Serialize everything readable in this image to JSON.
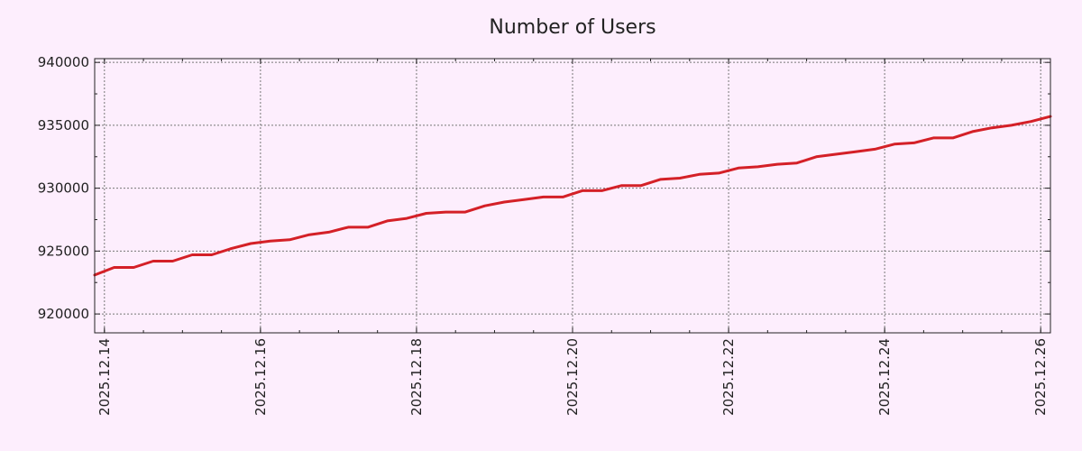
{
  "chart_data": {
    "type": "line",
    "title": "Number of Users",
    "xlabel": "",
    "ylabel": "",
    "x_ticks": [
      "2025.12.14",
      "2025.12.16",
      "2025.12.18",
      "2025.12.20",
      "2025.12.22",
      "2025.12.24",
      "2025.12.26"
    ],
    "y_ticks": [
      "920000",
      "925000",
      "930000",
      "935000",
      "940000"
    ],
    "xlim": [
      "2025-12-13T21:00",
      "2025-12-26T03:00"
    ],
    "ylim": [
      918500,
      940300
    ],
    "grid": true,
    "legend": "none",
    "series": [
      {
        "color": "#d42027",
        "x": [
          "2025-12-13T21:00",
          "2025-12-14T03:00",
          "2025-12-14T09:00",
          "2025-12-14T15:00",
          "2025-12-14T21:00",
          "2025-12-15T03:00",
          "2025-12-15T09:00",
          "2025-12-15T15:00",
          "2025-12-15T21:00",
          "2025-12-16T03:00",
          "2025-12-16T09:00",
          "2025-12-16T15:00",
          "2025-12-16T21:00",
          "2025-12-17T03:00",
          "2025-12-17T09:00",
          "2025-12-17T15:00",
          "2025-12-17T21:00",
          "2025-12-18T03:00",
          "2025-12-18T09:00",
          "2025-12-18T15:00",
          "2025-12-18T21:00",
          "2025-12-19T03:00",
          "2025-12-19T09:00",
          "2025-12-19T15:00",
          "2025-12-19T21:00",
          "2025-12-20T03:00",
          "2025-12-20T09:00",
          "2025-12-20T15:00",
          "2025-12-20T21:00",
          "2025-12-21T03:00",
          "2025-12-21T09:00",
          "2025-12-21T15:00",
          "2025-12-21T21:00",
          "2025-12-22T03:00",
          "2025-12-22T09:00",
          "2025-12-22T15:00",
          "2025-12-22T21:00",
          "2025-12-23T03:00",
          "2025-12-23T09:00",
          "2025-12-23T15:00",
          "2025-12-23T21:00",
          "2025-12-24T03:00",
          "2025-12-24T09:00",
          "2025-12-24T15:00",
          "2025-12-24T21:00",
          "2025-12-25T03:00",
          "2025-12-25T09:00",
          "2025-12-25T15:00",
          "2025-12-25T21:00",
          "2025-12-26T03:00"
        ],
        "y": [
          923100,
          923700,
          923700,
          924200,
          924200,
          924700,
          924700,
          925200,
          925600,
          925800,
          925900,
          926300,
          926500,
          926900,
          926900,
          927400,
          927600,
          928000,
          928100,
          928100,
          928600,
          928900,
          929100,
          929300,
          929300,
          929800,
          929800,
          930200,
          930200,
          930700,
          930800,
          931100,
          931200,
          931600,
          931700,
          931900,
          932000,
          932500,
          932700,
          932900,
          933100,
          933500,
          933600,
          934000,
          934000,
          934500,
          934800,
          935000,
          935300,
          935700
        ]
      }
    ]
  }
}
